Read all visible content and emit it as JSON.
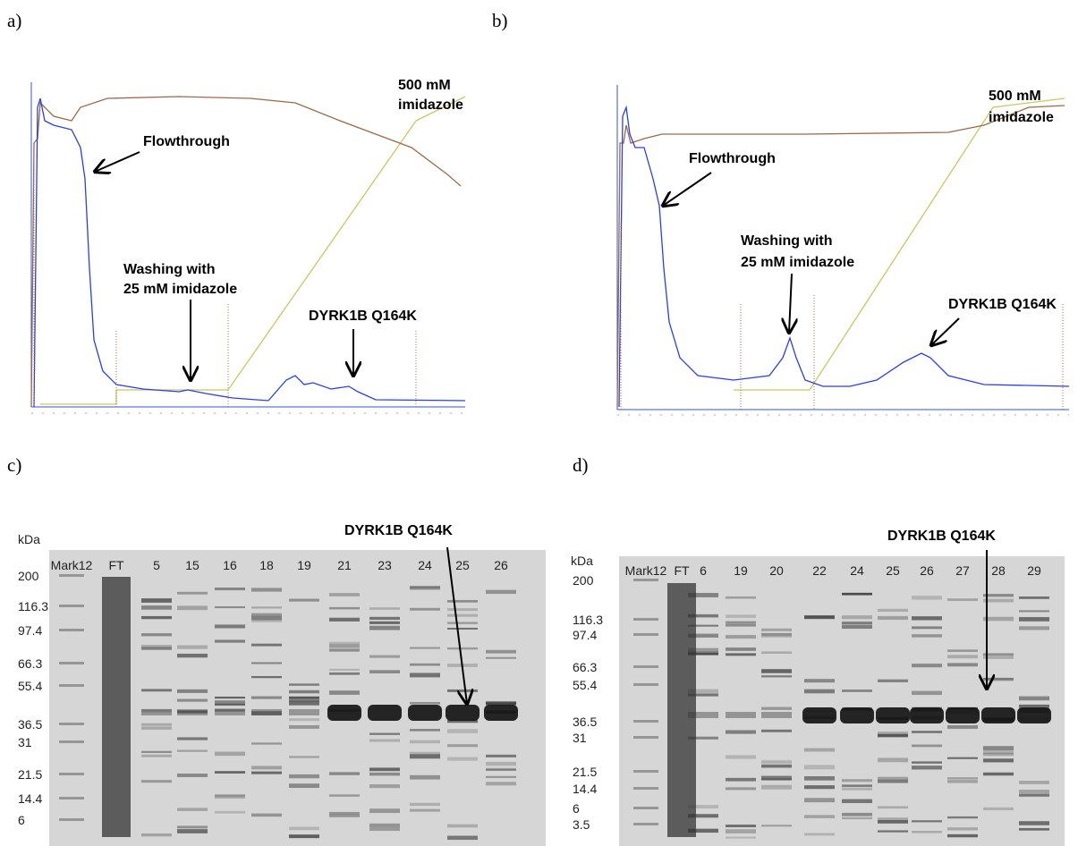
{
  "panels": [
    {
      "label": "a)",
      "annotations": {
        "flowthrough": "Flowthrough",
        "washing": [
          "Washing with",
          "25 mM imidazole"
        ],
        "protein": "DYRK1B Q164K",
        "elution": [
          "500 mM",
          "imidazole"
        ]
      }
    },
    {
      "label": "b)",
      "annotations": {
        "flowthrough": "Flowthrough",
        "washing": [
          "Washing with",
          "25 mM imidazole"
        ],
        "protein": "DYRK1B Q164K",
        "elution": [
          "500 mM",
          "imidazole"
        ]
      }
    },
    {
      "label": "c)",
      "unit": "kDa",
      "markers": [
        "200",
        "116.3",
        "97.4",
        "66.3",
        "55.4",
        "36.5",
        "31",
        "21.5",
        "14.4",
        "6"
      ],
      "lanes": [
        "Mark12",
        "FT",
        "5",
        "15",
        "16",
        "18",
        "19",
        "21",
        "23",
        "24",
        "25",
        "26"
      ],
      "protein": "DYRK1B Q164K"
    },
    {
      "label": "d)",
      "unit": "kDa",
      "markers": [
        "200",
        "116.3",
        "97.4",
        "66.3",
        "55.4",
        "36.5",
        "31",
        "21.5",
        "14.4",
        "6",
        "3.5"
      ],
      "lanes": [
        "Mark12",
        "FT",
        "6",
        "19",
        "20",
        "22",
        "24",
        "25",
        "26",
        "27",
        "28",
        "29"
      ],
      "protein": "DYRK1B Q164K"
    }
  ]
}
